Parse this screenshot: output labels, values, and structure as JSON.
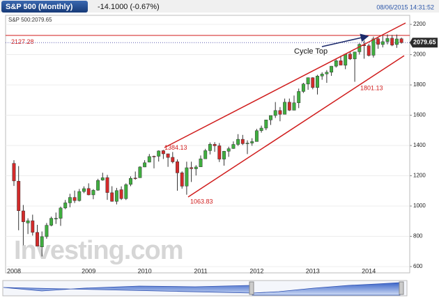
{
  "chart_data": {
    "type": "candlestick",
    "title": "S&P 500 (Monthly)",
    "change": "-14.1000 (-0.67%)",
    "timestamp": "08/06/2015 14:31:52",
    "legend": "S&P 500:2079.65",
    "last_price": 2079.65,
    "resistance": 2127.28,
    "annotations": [
      1384.13,
      1063.83,
      1801.13
    ],
    "cycle_label": "Cycle Top",
    "watermark": "Investing.com",
    "categories": [
      "2008",
      null,
      null,
      null,
      null,
      null,
      null,
      null,
      null,
      null,
      null,
      null,
      null,
      null,
      null,
      null,
      "2009",
      null,
      null,
      null,
      null,
      null,
      null,
      null,
      null,
      null,
      null,
      null,
      "2010",
      null,
      null,
      null,
      null,
      null,
      null,
      null,
      null,
      null,
      null,
      null,
      "2011",
      null,
      null,
      null,
      null,
      null,
      null,
      null,
      null,
      null,
      null,
      null,
      "2012",
      null,
      null,
      null,
      null,
      null,
      null,
      null,
      null,
      null,
      null,
      null,
      "2013",
      null,
      null,
      null,
      null,
      null,
      null,
      null,
      null,
      null,
      null,
      null,
      "2014",
      null,
      null,
      null,
      null,
      null,
      null,
      null
    ],
    "open": [
      1282,
      1164,
      968,
      888,
      903,
      826,
      730,
      798,
      873,
      919,
      919,
      987,
      1021,
      1057,
      1036,
      1096,
      1116,
      1074,
      1105,
      1171,
      1188,
      1088,
      1031,
      1108,
      1049,
      1143,
      1185,
      1187,
      1258,
      1290,
      1329,
      1329,
      1366,
      1345,
      1322,
      1293,
      1220,
      1132,
      1254,
      1246,
      1259,
      1312,
      1366,
      1408,
      1398,
      1310,
      1362,
      1380,
      1407,
      1441,
      1412,
      1416,
      1426,
      1498,
      1515,
      1569,
      1598,
      1631,
      1606,
      1686,
      1633,
      1682,
      1757,
      1806,
      1848,
      1783,
      1859,
      1873,
      1884,
      1924,
      1960,
      1930,
      2004,
      1972,
      2019,
      2065,
      2059,
      1996,
      2105,
      2067,
      2087,
      2109,
      2067,
      2105
    ],
    "high": [
      1303,
      1264,
      1007,
      919,
      943,
      876,
      832,
      888,
      930,
      957,
      996,
      1040,
      1081,
      1102,
      1113,
      1130,
      1150,
      1112,
      1180,
      1220,
      1206,
      1131,
      1120,
      1130,
      1150,
      1196,
      1228,
      1263,
      1303,
      1344,
      1333,
      1368,
      1371,
      1346,
      1357,
      1308,
      1229,
      1293,
      1293,
      1270,
      1334,
      1378,
      1420,
      1422,
      1416,
      1364,
      1392,
      1427,
      1475,
      1470,
      1434,
      1448,
      1510,
      1531,
      1570,
      1598,
      1687,
      1654,
      1710,
      1710,
      1730,
      1776,
      1814,
      1849,
      1851,
      1867,
      1884,
      1898,
      1925,
      1968,
      1992,
      2005,
      2019,
      2018,
      2075,
      2094,
      2072,
      2119,
      2117,
      2126,
      2134,
      2130,
      2133,
      2113
    ],
    "low": [
      1133,
      840,
      741,
      815,
      805,
      735,
      667,
      784,
      866,
      882,
      869,
      979,
      992,
      1020,
      1030,
      1085,
      1071,
      1045,
      1101,
      1167,
      1041,
      1029,
      1011,
      1040,
      1040,
      1131,
      1174,
      1186,
      1257,
      1289,
      1249,
      1294,
      1311,
      1259,
      1282,
      1101,
      1115,
      1075,
      1159,
      1202,
      1259,
      1312,
      1341,
      1358,
      1291,
      1267,
      1325,
      1378,
      1397,
      1403,
      1343,
      1398,
      1426,
      1485,
      1501,
      1536,
      1582,
      1560,
      1605,
      1628,
      1633,
      1647,
      1747,
      1768,
      1771,
      1737,
      1834,
      1814,
      1860,
      1915,
      1930,
      1904,
      1965,
      1821,
      2001,
      1973,
      1988,
      1981,
      2039,
      2048,
      2068,
      2056,
      2045,
      2073
    ],
    "close": [
      1166,
      969,
      896,
      903,
      826,
      735,
      798,
      873,
      919,
      919,
      987,
      1021,
      1057,
      1036,
      1096,
      1115,
      1074,
      1104,
      1169,
      1187,
      1089,
      1031,
      1102,
      1049,
      1141,
      1183,
      1181,
      1258,
      1286,
      1327,
      1326,
      1364,
      1345,
      1321,
      1292,
      1219,
      1131,
      1253,
      1247,
      1258,
      1312,
      1366,
      1408,
      1398,
      1310,
      1362,
      1379,
      1407,
      1441,
      1412,
      1416,
      1426,
      1498,
      1515,
      1569,
      1598,
      1631,
      1606,
      1686,
      1633,
      1682,
      1757,
      1806,
      1848,
      1783,
      1859,
      1872,
      1884,
      1924,
      1960,
      1931,
      2003,
      1972,
      2018,
      2068,
      2059,
      1995,
      2105,
      2068,
      2086,
      2107,
      2063,
      2104,
      2080
    ],
    "up_color": "#3fae3f",
    "down_color": "#d42a2a",
    "ylim": [
      600,
      2260
    ],
    "yticks": [
      600,
      800,
      1000,
      1200,
      1400,
      1600,
      1800,
      2000,
      2200
    ],
    "grid": true
  }
}
